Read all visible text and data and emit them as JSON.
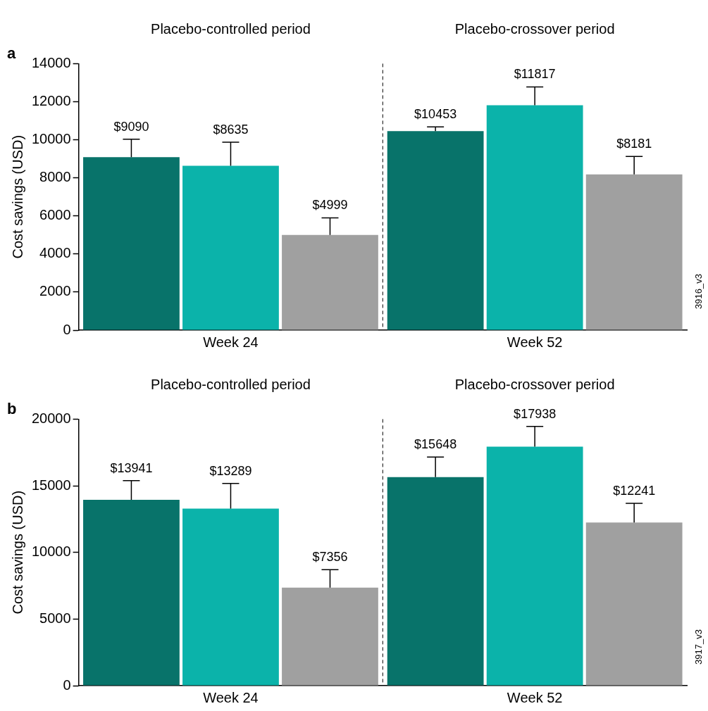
{
  "chart_data": [
    {
      "type": "bar",
      "title": "a",
      "ylabel": "Cost savings (USD)",
      "categories": [
        "Week 24",
        "Week 52"
      ],
      "ylim": [
        0,
        14000
      ],
      "yticks": [
        0,
        2000,
        4000,
        6000,
        8000,
        10000,
        12000,
        14000
      ],
      "grid": false,
      "legend": false,
      "series": [
        {
          "color": "#08736a",
          "values": [
            9090,
            10453
          ],
          "errors": [
            [
              9090,
              10030
            ],
            [
              10453,
              10680
            ]
          ],
          "value_labels": [
            "$9090",
            "$10453"
          ]
        },
        {
          "color": "#0bb3aa",
          "values": [
            8635,
            11817
          ],
          "errors": [
            [
              8635,
              9870
            ],
            [
              11817,
              12780
            ]
          ],
          "value_labels": [
            "$8635",
            "$11817"
          ]
        },
        {
          "color": "#a0a0a0",
          "values": [
            4999,
            8181
          ],
          "errors": [
            [
              4999,
              5900
            ],
            [
              8181,
              9120
            ]
          ],
          "value_labels": [
            "$4999",
            "$8181"
          ]
        }
      ],
      "annotations": [
        "Placebo-controlled period",
        "Placebo-crossover period",
        "3916_v3"
      ]
    },
    {
      "type": "bar",
      "title": "b",
      "ylabel": "Cost savings (USD)",
      "categories": [
        "Week 24",
        "Week 52"
      ],
      "ylim": [
        0,
        20000
      ],
      "yticks": [
        0,
        5000,
        10000,
        15000,
        20000
      ],
      "grid": false,
      "legend": false,
      "series": [
        {
          "color": "#08736a",
          "values": [
            13941,
            15648
          ],
          "errors": [
            [
              13941,
              15380
            ],
            [
              15648,
              17150
            ]
          ],
          "value_labels": [
            "$13941",
            "$15648"
          ]
        },
        {
          "color": "#0bb3aa",
          "values": [
            13289,
            17938
          ],
          "errors": [
            [
              13289,
              15180
            ],
            [
              17938,
              19450
            ]
          ],
          "value_labels": [
            "$13289",
            "$17938"
          ]
        },
        {
          "color": "#a0a0a0",
          "values": [
            7356,
            12241
          ],
          "errors": [
            [
              7356,
              8700
            ],
            [
              12241,
              13680
            ]
          ],
          "value_labels": [
            "$7356",
            "$12241"
          ]
        }
      ],
      "annotations": [
        "Placebo-controlled period",
        "Placebo-crossover period",
        "3917_v3"
      ]
    }
  ]
}
